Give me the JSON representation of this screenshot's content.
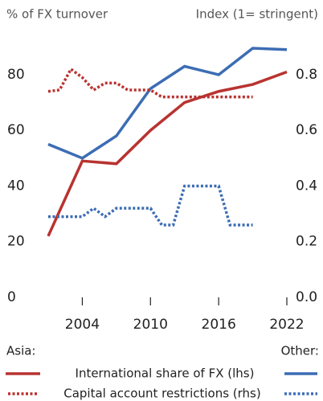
{
  "chart_data": {
    "type": "line",
    "ylabel": "% of FX turnover",
    "y2label": "Index (1= stringent)",
    "xlim": [
      2001,
      2022
    ],
    "xticks": [
      2004,
      2010,
      2016,
      2022
    ],
    "ylim": [
      0,
      95
    ],
    "yticks": [
      0,
      20,
      40,
      60,
      80
    ],
    "y2lim": [
      0,
      0.95
    ],
    "y2ticks": [
      {
        "value": 0,
        "label": "0.0"
      },
      0.2,
      0.4,
      0.6,
      0.8
    ],
    "groups": [
      "Asia:",
      "Other:"
    ],
    "series": [
      {
        "name": "International share of FX (lhs)",
        "dashed": false,
        "colors": [
          "#b83330",
          "#3c6db4"
        ],
        "x": [
          2001,
          2004,
          2007,
          2010,
          2013,
          2016,
          2019,
          2022
        ],
        "values": [
          [
            22,
            49,
            48,
            60,
            70,
            74,
            76.5,
            81
          ],
          [
            55,
            50,
            58,
            75,
            83,
            80,
            89.5,
            89
          ]
        ]
      },
      {
        "name": "Capital account restrictions (rhs)",
        "axis": "y2",
        "dashed": true,
        "colors": [
          "#b83330",
          "#3c6db4"
        ],
        "x": [
          2001,
          2002,
          2003,
          2004,
          2005,
          2006,
          2007,
          2008,
          2009,
          2010,
          2011,
          2012,
          2013,
          2014,
          2015,
          2016,
          2017,
          2018,
          2019
        ],
        "values": [
          [
            0.74,
            0.745,
            0.82,
            0.79,
            0.745,
            0.77,
            0.77,
            0.745,
            0.745,
            0.745,
            0.72,
            0.72,
            0.72,
            0.72,
            0.72,
            0.72,
            0.72,
            0.72,
            0.72
          ],
          [
            0.29,
            0.29,
            0.29,
            0.29,
            0.32,
            0.29,
            0.32,
            0.32,
            0.32,
            0.32,
            0.26,
            0.26,
            0.4,
            0.4,
            0.4,
            0.4,
            0.26,
            0.26,
            0.26
          ]
        ]
      }
    ]
  }
}
